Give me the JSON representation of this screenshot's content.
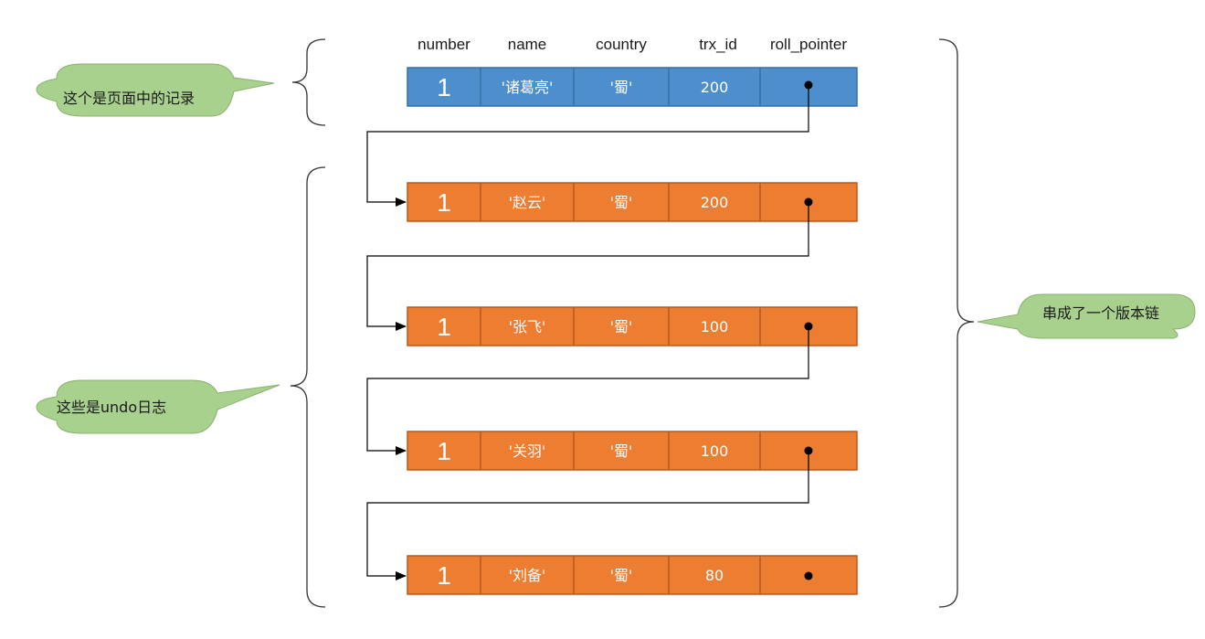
{
  "columns": [
    "number",
    "name",
    "country",
    "trx_id",
    "roll_pointer"
  ],
  "page_record": {
    "number": "1",
    "name": "'诸葛亮'",
    "country": "'蜀'",
    "trx_id": "200",
    "fill": "#4d8fcc",
    "border": "#3a6fa6"
  },
  "undo_records": [
    {
      "number": "1",
      "name": "'赵云'",
      "country": "'蜀'",
      "trx_id": "200"
    },
    {
      "number": "1",
      "name": "'张飞'",
      "country": "'蜀'",
      "trx_id": "100"
    },
    {
      "number": "1",
      "name": "'关羽'",
      "country": "'蜀'",
      "trx_id": "100"
    },
    {
      "number": "1",
      "name": "'刘备'",
      "country": "'蜀'",
      "trx_id": "80"
    }
  ],
  "undo_style": {
    "fill": "#ed7d31",
    "border": "#b55a1e"
  },
  "callouts": {
    "page_record": "这个是页面中的记录",
    "undo_log": "这些是undo日志",
    "version_chain": "串成了一个版本链"
  },
  "callout_fill": "#a9d18e",
  "line_color": "#000000"
}
